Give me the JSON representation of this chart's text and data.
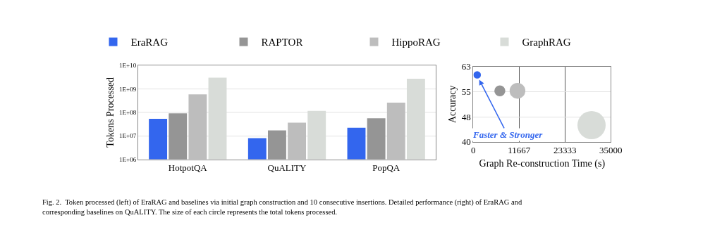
{
  "chart_data": [
    {
      "type": "bar",
      "ylabel": "Tokens Processed",
      "categories": [
        "HotpotQA",
        "QuALITY",
        "PopQA"
      ],
      "series": [
        {
          "name": "EraRAG",
          "color": "#3366ee",
          "values": [
            53000000,
            8000000,
            22000000
          ]
        },
        {
          "name": "RAPTOR",
          "color": "#959595",
          "values": [
            90000000,
            17000000,
            56000000
          ]
        },
        {
          "name": "HippoRAG",
          "color": "#bdbdbd",
          "values": [
            580000000,
            36000000,
            260000000
          ]
        },
        {
          "name": "GraphRAG",
          "color": "#d8dcd8",
          "values": [
            3000000000,
            115000000,
            2700000000
          ]
        }
      ],
      "log": "y",
      "ylim": [
        1000000,
        10000000000
      ],
      "yticks": [
        {
          "value": 1000000,
          "label": "1E+06"
        },
        {
          "value": 10000000,
          "label": "1E+07"
        },
        {
          "value": 100000000,
          "label": "1E+08"
        },
        {
          "value": 1000000000,
          "label": "1E+09"
        },
        {
          "value": 10000000000,
          "label": "1E+10"
        }
      ],
      "grid": "y",
      "legend": "top",
      "annotations": [
        "Fig. 2.  Token processed (left) of EraRAG and baselines via initial graph construction and 10 consecutive insertions. Detailed performance (right) of EraRAG and corresponding baselines on QuALITY. The size of each circle represents the total tokens processed."
      ]
    },
    {
      "type": "bubble",
      "xlabel": "Graph Re-construction Time (s)",
      "ylabel": "Accuracy",
      "x": [
        980,
        6750,
        11240,
        30100
      ],
      "values": [
        60.5,
        55.6,
        55.6,
        45.1
      ],
      "sizes": [
        0.07,
        0.15,
        0.31,
        1
      ],
      "colors": [
        "#3366ee",
        "#959595",
        "#bdbdbd",
        "#d8dcd8"
      ],
      "xlim": [
        0,
        35000
      ],
      "xticks": [
        0,
        {
          "value": 11666.67,
          "label": "11667"
        },
        {
          "value": 23333.33,
          "label": "23333"
        },
        35000
      ],
      "ylim": [
        40,
        63
      ],
      "yticks": [
        40,
        {
          "value": 47.67,
          "label": "48"
        },
        {
          "value": 55.33,
          "label": "55"
        },
        63
      ],
      "grid": true,
      "annotations": [
        {
          "text": "Faster & Stronger",
          "x": 1500,
          "y": 59
        }
      ]
    }
  ]
}
